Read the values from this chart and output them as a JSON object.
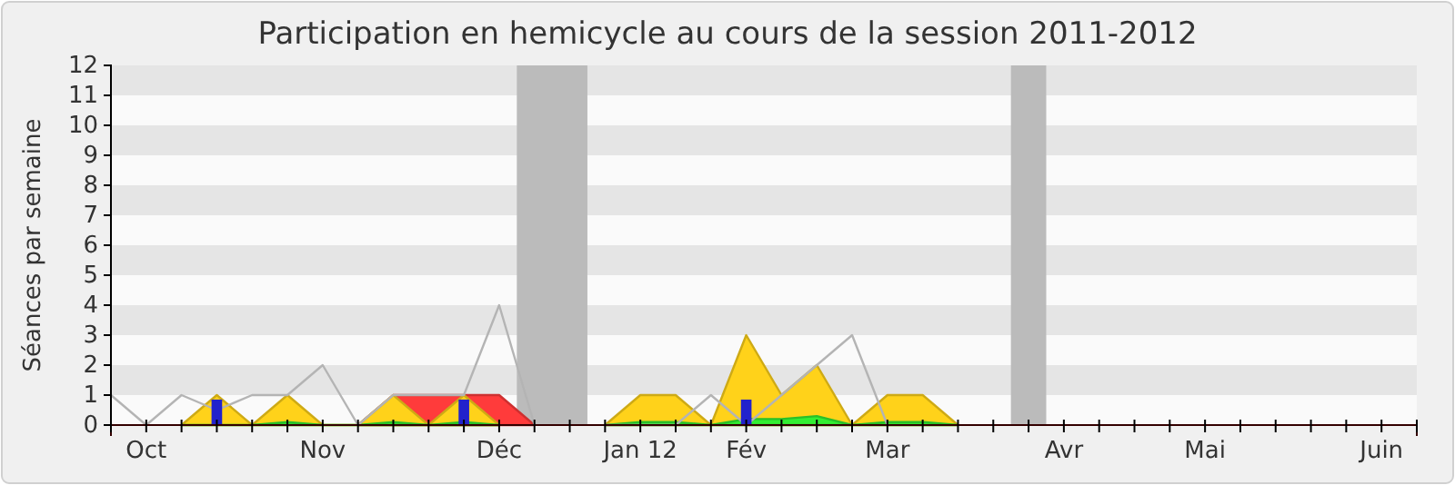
{
  "chart_data": {
    "type": "area",
    "title": "Participation en hemicycle au cours de la session 2011-2012",
    "ylabel": "Séances par semaine",
    "categories": [
      null,
      "Oct",
      null,
      null,
      null,
      null,
      "Nov",
      null,
      null,
      null,
      null,
      "Déc",
      null,
      null,
      null,
      "Jan 12",
      null,
      null,
      "Fév",
      null,
      null,
      null,
      "Mar",
      null,
      null,
      null,
      null,
      "Avr",
      null,
      null,
      null,
      "Mai",
      null,
      null,
      null,
      null,
      "Juin",
      null
    ],
    "ylim": [
      0,
      12
    ],
    "yticks": [
      0,
      1,
      2,
      3,
      4,
      5,
      6,
      7,
      8,
      9,
      10,
      11,
      12
    ],
    "series": [
      {
        "color": "#ff3b3b",
        "values": [
          null,
          null,
          null,
          null,
          null,
          null,
          null,
          0,
          1,
          1,
          1,
          1,
          0,
          null,
          null,
          null,
          null,
          null,
          null,
          null,
          null,
          null,
          null,
          null,
          null,
          null,
          null,
          null,
          null,
          null,
          null,
          null,
          null,
          null,
          null,
          null,
          null,
          null
        ]
      },
      {
        "color": "#ffd21a",
        "values": [
          null,
          null,
          0,
          1,
          0,
          1,
          0,
          0,
          1,
          0,
          1,
          0,
          null,
          null,
          0,
          1,
          1,
          0,
          3,
          1,
          2,
          0,
          1,
          1,
          0,
          null,
          null,
          null,
          null,
          null,
          null,
          null,
          null,
          null,
          null,
          null,
          null,
          null
        ]
      },
      {
        "color": "#33ee33",
        "values": [
          null,
          null,
          0,
          0,
          0,
          0.1,
          0,
          0,
          0.1,
          0,
          0.1,
          0,
          null,
          null,
          0,
          0.1,
          0.1,
          0,
          0.2,
          0.2,
          0.3,
          0,
          0.1,
          0.1,
          0,
          null,
          null,
          null,
          null,
          null,
          null,
          null,
          null,
          null,
          null,
          null,
          null,
          null
        ]
      },
      {
        "type": "line",
        "color": "#b4b4b4",
        "values": [
          1,
          0,
          1,
          0.5,
          1,
          1,
          2,
          0,
          1,
          1,
          1,
          4,
          0,
          null,
          0,
          0,
          0,
          1,
          0,
          1,
          2,
          3,
          0,
          null,
          null,
          null,
          null,
          null,
          null,
          null,
          null,
          null,
          null,
          null,
          null,
          null,
          null,
          null
        ]
      },
      {
        "type": "bar",
        "color": "#2222cc",
        "values": [
          null,
          null,
          null,
          0.85,
          null,
          null,
          null,
          null,
          null,
          null,
          0.85,
          null,
          null,
          null,
          null,
          null,
          null,
          null,
          0.85,
          null,
          null,
          null,
          null,
          null,
          null,
          null,
          null,
          null,
          null,
          null,
          null,
          null,
          null,
          null,
          null,
          null,
          null,
          null
        ]
      }
    ]
  }
}
